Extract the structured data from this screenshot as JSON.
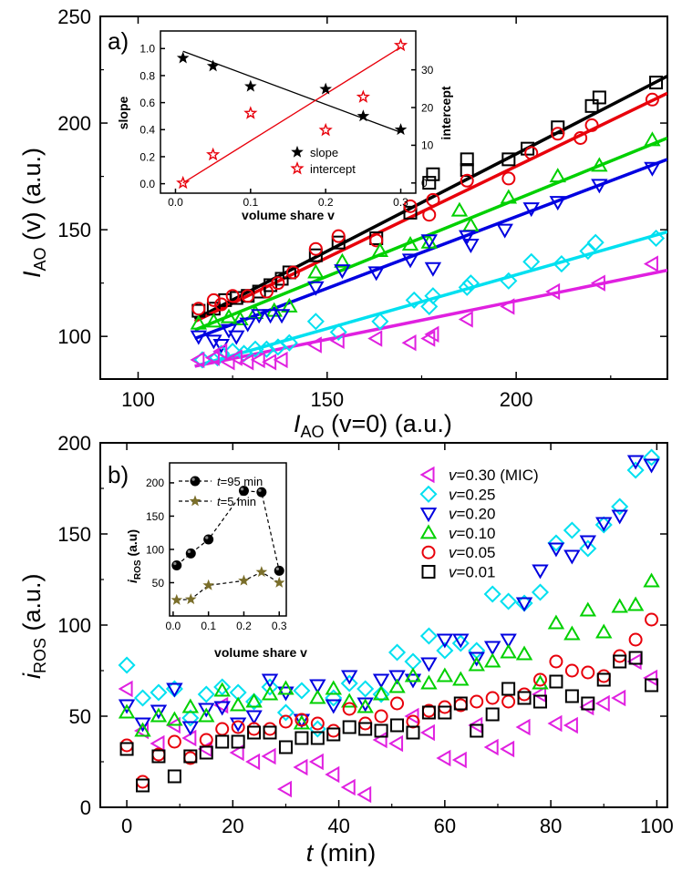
{
  "chart_data": [
    {
      "panel": "a)",
      "type": "scatter",
      "xlabel": {
        "main": "I",
        "sub": "AO",
        "rest": " (v=0) (a.u.)"
      },
      "ylabel": {
        "main": "I",
        "sub": "AO",
        "rest": " (v) (a.u.)"
      },
      "xlim": [
        90,
        240
      ],
      "ylim": [
        80,
        250
      ],
      "xticks": [
        100,
        150,
        200
      ],
      "yticks": [
        100,
        150,
        200,
        250
      ],
      "grid": false,
      "series": [
        {
          "name": "v=0.01",
          "marker": "square",
          "color": "#000000",
          "x": [
            116,
            120,
            123,
            126,
            129,
            132,
            135,
            138,
            140,
            147,
            153,
            163,
            172,
            177,
            178,
            187,
            187,
            198,
            203,
            211,
            220,
            222,
            237
          ],
          "y": [
            112,
            113,
            117,
            118,
            119,
            121,
            124,
            127,
            130,
            138,
            144,
            146,
            158,
            172,
            176,
            178,
            183,
            183,
            188,
            198,
            208,
            212,
            219
          ],
          "fit": [
            [
              115,
              108
            ],
            [
              240,
              222
            ]
          ]
        },
        {
          "name": "v=0.05",
          "marker": "circle",
          "color": "#e8000b",
          "x": [
            116,
            120,
            122,
            125,
            129,
            134,
            137,
            141,
            147,
            153,
            163,
            172,
            177,
            178,
            187,
            198,
            204,
            211,
            217,
            220,
            236
          ],
          "y": [
            113,
            117,
            115,
            119,
            119,
            121,
            125,
            130,
            141,
            147,
            145,
            161,
            157,
            164,
            173,
            174,
            186,
            195,
            193,
            199,
            211
          ],
          "fit": [
            [
              115,
              107
            ],
            [
              240,
              214
            ]
          ]
        },
        {
          "name": "v=0.10",
          "marker": "triangle-up",
          "color": "#00d000",
          "x": [
            116,
            120,
            124,
            127,
            131,
            136,
            140,
            147,
            154,
            164,
            172,
            177,
            185,
            188,
            198,
            211,
            222,
            236
          ],
          "y": [
            106,
            107,
            109,
            108,
            111,
            112,
            114,
            130,
            135,
            140,
            143,
            144,
            159,
            152,
            165,
            175,
            180,
            192
          ],
          "fit": [
            [
              115,
              103
            ],
            [
              240,
              193
            ]
          ]
        },
        {
          "name": "v=0.20",
          "marker": "triangle-down",
          "color": "#0000e0",
          "x": [
            116,
            120,
            122,
            124,
            126,
            129,
            132,
            135,
            138,
            147,
            154,
            163,
            172,
            177,
            178,
            187,
            188,
            197,
            204,
            211,
            222,
            236
          ],
          "y": [
            100,
            98,
            96,
            103,
            100,
            106,
            110,
            110,
            110,
            123,
            131,
            130,
            136,
            145,
            132,
            147,
            143,
            150,
            160,
            163,
            171,
            179
          ],
          "fit": [
            [
              115,
              99
            ],
            [
              240,
              183
            ]
          ]
        },
        {
          "name": "v=0.25",
          "marker": "diamond",
          "color": "#00e0f0",
          "x": [
            117,
            121,
            122,
            125,
            128,
            131,
            134,
            137,
            140,
            147,
            153,
            164,
            173,
            177,
            178,
            187,
            188,
            198,
            204,
            212,
            219,
            221,
            237
          ],
          "y": [
            89,
            90,
            92,
            93,
            92,
            94,
            94,
            95,
            97,
            107,
            102,
            107,
            117,
            114,
            119,
            123,
            125,
            126,
            135,
            134,
            140,
            144,
            146
          ],
          "fit": [
            [
              115,
              86
            ],
            [
              240,
              149
            ]
          ]
        },
        {
          "name": "v=0.30 (MIC)",
          "marker": "triangle-left",
          "color": "#e020e0",
          "x": [
            116,
            120,
            122,
            124,
            126,
            129,
            132,
            135,
            138,
            147,
            153,
            163,
            172,
            177,
            178,
            187,
            198,
            210,
            222,
            236
          ],
          "y": [
            89,
            90,
            93,
            88,
            90,
            88,
            89,
            88,
            89,
            96,
            98,
            99,
            97,
            99,
            101,
            108,
            114,
            121,
            125,
            134
          ],
          "fit": [
            [
              115,
              86
            ],
            [
              240,
              131
            ]
          ]
        }
      ],
      "inset": {
        "type": "scatter",
        "xlabel": "volume share v",
        "ylabel_left": "slope",
        "ylabel_right": "intercept",
        "xlim": [
          -0.02,
          0.32
        ],
        "ylim_left": [
          -0.07,
          1.13
        ],
        "ylim_right": [
          -2.7,
          40.3
        ],
        "xticks": [
          0.0,
          0.1,
          0.2,
          0.3
        ],
        "yticks_left": [
          0.0,
          0.2,
          0.4,
          0.6,
          0.8,
          1.0
        ],
        "yticks_right": [
          0,
          10,
          20,
          30
        ],
        "legend": {
          "position": "bottom-right"
        },
        "series": [
          {
            "name": "slope",
            "axis": "left",
            "marker": "star-filled",
            "color": "#000000",
            "x": [
              0.01,
              0.05,
              0.1,
              0.2,
              0.25,
              0.3
            ],
            "y": [
              0.93,
              0.87,
              0.72,
              0.7,
              0.5,
              0.4
            ],
            "fit": [
              [
                0.01,
                0.98
              ],
              [
                0.3,
                0.38
              ]
            ]
          },
          {
            "name": "intercept",
            "axis": "right",
            "marker": "star-open",
            "color": "#e8000b",
            "x": [
              0.01,
              0.05,
              0.1,
              0.2,
              0.25,
              0.3
            ],
            "y": [
              0.0,
              7.5,
              18.5,
              14.0,
              22.8,
              36.5
            ],
            "fit": [
              [
                0.01,
                0.0
              ],
              [
                0.3,
                36.0
              ]
            ]
          }
        ]
      }
    },
    {
      "panel": "b)",
      "type": "scatter",
      "xlabel": {
        "main": "t",
        "sub": "",
        "rest": " (min)"
      },
      "ylabel": {
        "main": "i",
        "sub": "ROS",
        "rest": " (a.u.)"
      },
      "xlim": [
        -5,
        102
      ],
      "ylim": [
        0,
        200
      ],
      "xticks": [
        0,
        20,
        40,
        60,
        80,
        100
      ],
      "yticks": [
        0,
        50,
        100,
        150,
        200
      ],
      "grid": false,
      "legend": {
        "position": "top-right"
      },
      "series": [
        {
          "name": "v=0.30 (MIC)",
          "marker": "triangle-left",
          "color": "#e020e0",
          "x": [
            0,
            3,
            6,
            9,
            12,
            15,
            18,
            21,
            24,
            27,
            30,
            33,
            36,
            39,
            42,
            45,
            48,
            51,
            54,
            57,
            60,
            63,
            66,
            69,
            72,
            75,
            78,
            81,
            84,
            87,
            90,
            93,
            96,
            99
          ],
          "y": [
            65,
            42,
            35,
            45,
            38,
            32,
            56,
            30,
            25,
            28,
            10,
            22,
            25,
            18,
            11,
            7,
            37,
            35,
            50,
            41,
            27,
            26,
            45,
            33,
            32,
            44,
            62,
            46,
            45,
            55,
            57,
            60,
            80,
            71
          ]
        },
        {
          "name": "v=0.25",
          "marker": "diamond",
          "color": "#00e0f0",
          "x": [
            0,
            3,
            6,
            9,
            12,
            15,
            18,
            21,
            24,
            27,
            30,
            33,
            36,
            39,
            42,
            45,
            48,
            51,
            54,
            57,
            60,
            63,
            66,
            69,
            72,
            75,
            78,
            81,
            84,
            87,
            90,
            93,
            96,
            99
          ],
          "y": [
            78,
            60,
            63,
            65,
            49,
            62,
            66,
            63,
            58,
            66,
            52,
            64,
            43,
            60,
            68,
            65,
            62,
            85,
            80,
            94,
            86,
            90,
            86,
            117,
            113,
            112,
            118,
            145,
            152,
            142,
            155,
            165,
            185,
            192
          ]
        },
        {
          "name": "v=0.20",
          "marker": "triangle-down",
          "color": "#0000e0",
          "x": [
            0,
            3,
            6,
            9,
            12,
            15,
            18,
            21,
            24,
            27,
            30,
            33,
            36,
            39,
            42,
            45,
            48,
            51,
            54,
            57,
            60,
            63,
            66,
            69,
            72,
            75,
            78,
            81,
            84,
            87,
            90,
            93,
            96,
            99
          ],
          "y": [
            56,
            46,
            53,
            65,
            44,
            54,
            55,
            46,
            50,
            70,
            63,
            48,
            67,
            56,
            72,
            57,
            70,
            72,
            70,
            79,
            92,
            92,
            82,
            88,
            92,
            112,
            130,
            142,
            138,
            146,
            156,
            160,
            190,
            188
          ]
        },
        {
          "name": "v=0.10",
          "marker": "triangle-up",
          "color": "#00d000",
          "x": [
            0,
            3,
            6,
            9,
            12,
            15,
            18,
            21,
            24,
            27,
            30,
            33,
            36,
            39,
            42,
            45,
            48,
            51,
            54,
            57,
            60,
            63,
            66,
            69,
            72,
            75,
            78,
            81,
            84,
            87,
            90,
            93,
            96,
            99
          ],
          "y": [
            52,
            42,
            50,
            48,
            55,
            50,
            64,
            56,
            58,
            62,
            65,
            46,
            60,
            65,
            58,
            55,
            62,
            66,
            72,
            68,
            72,
            70,
            78,
            80,
            85,
            84,
            68,
            101,
            95,
            108,
            96,
            110,
            111,
            124
          ]
        },
        {
          "name": "v=0.05",
          "marker": "circle",
          "color": "#e8000b",
          "x": [
            0,
            3,
            6,
            9,
            12,
            15,
            18,
            21,
            24,
            27,
            30,
            33,
            36,
            39,
            42,
            45,
            48,
            51,
            54,
            57,
            60,
            63,
            66,
            69,
            72,
            75,
            78,
            81,
            84,
            87,
            90,
            93,
            96,
            99
          ],
          "y": [
            34,
            14,
            29,
            36,
            27,
            37,
            43,
            44,
            43,
            43,
            47,
            48,
            46,
            42,
            54,
            46,
            50,
            57,
            47,
            53,
            55,
            56,
            58,
            60,
            58,
            62,
            70,
            80,
            75,
            74,
            72,
            83,
            92,
            103
          ]
        },
        {
          "name": "v=0.01",
          "marker": "square",
          "color": "#000000",
          "x": [
            0,
            3,
            6,
            9,
            12,
            15,
            18,
            21,
            24,
            27,
            30,
            33,
            36,
            39,
            42,
            45,
            48,
            51,
            54,
            57,
            60,
            63,
            66,
            69,
            72,
            75,
            78,
            81,
            84,
            87,
            90,
            93,
            96,
            99
          ],
          "y": [
            32,
            12,
            28,
            17,
            28,
            30,
            36,
            36,
            41,
            41,
            33,
            38,
            38,
            40,
            44,
            43,
            42,
            45,
            41,
            52,
            52,
            57,
            42,
            51,
            65,
            60,
            58,
            69,
            61,
            57,
            70,
            80,
            82,
            67
          ]
        }
      ],
      "inset": {
        "type": "line",
        "xlabel": "volume share v",
        "ylabel": {
          "main": "i",
          "sub": "ROS",
          "rest": " (a.u)"
        },
        "xlim": [
          -0.01,
          0.32
        ],
        "ylim": [
          0,
          230
        ],
        "xticks": [
          0.0,
          0.1,
          0.2,
          0.3
        ],
        "yticks": [
          50,
          100,
          150,
          200
        ],
        "legend": {
          "position": "top-left"
        },
        "series": [
          {
            "name": "t=95 min",
            "marker": "ball",
            "color": "#000000",
            "x": [
              0.01,
              0.05,
              0.1,
              0.2,
              0.25,
              0.3
            ],
            "y": [
              76,
              94,
              115,
              188,
              186,
              68
            ]
          },
          {
            "name": "t=5 min",
            "marker": "star-filled",
            "color": "#7a6e2a",
            "x": [
              0.01,
              0.05,
              0.1,
              0.2,
              0.25,
              0.3
            ],
            "y": [
              24,
              25,
              46,
              53,
              66,
              50
            ]
          }
        ]
      }
    }
  ]
}
